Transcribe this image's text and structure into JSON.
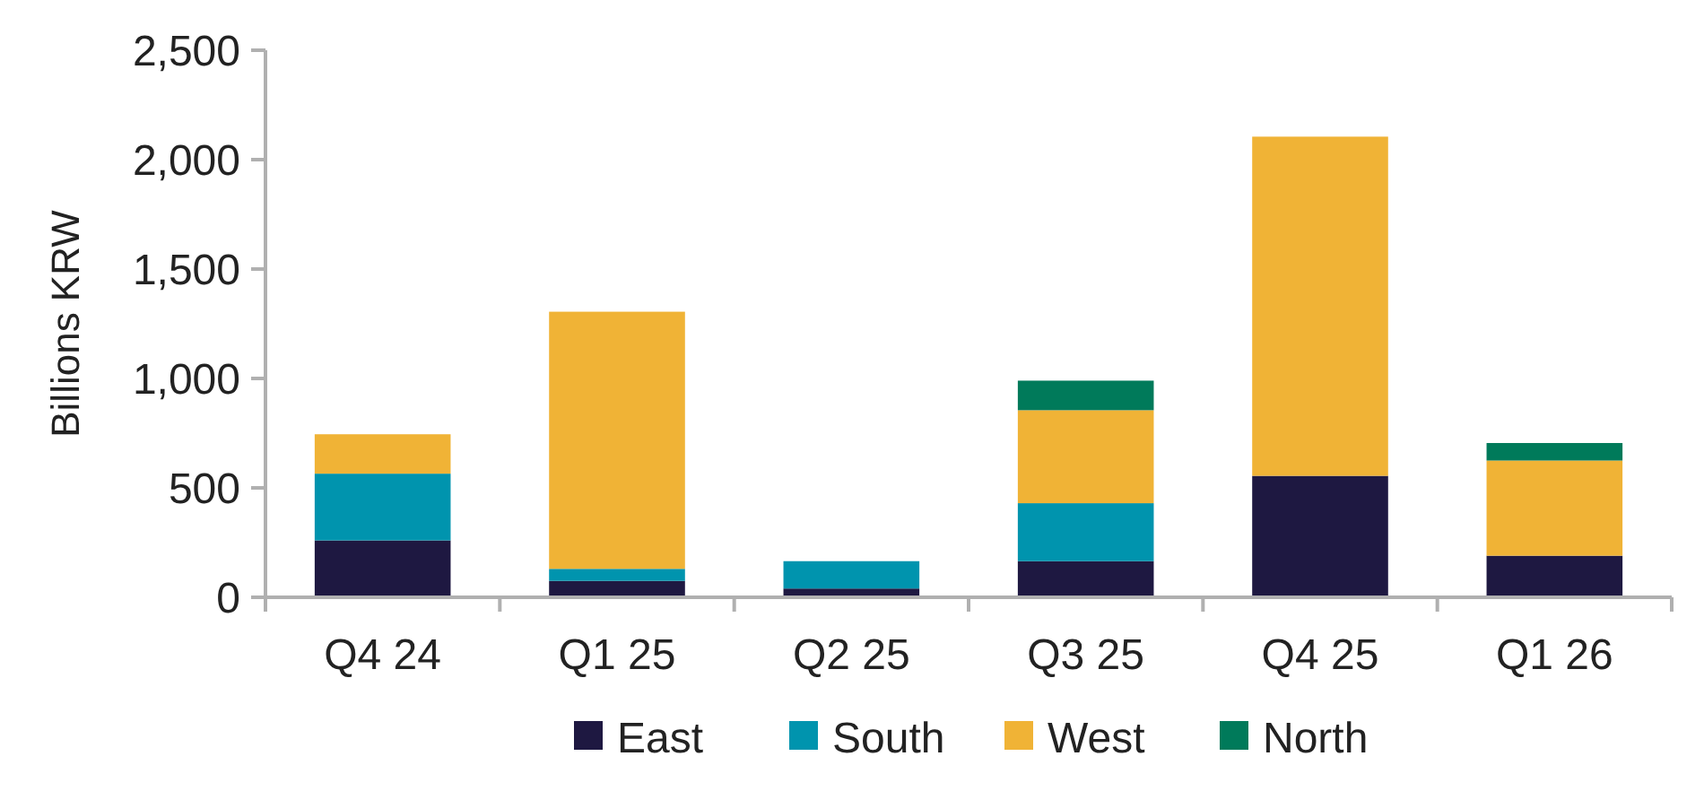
{
  "chart_data": {
    "type": "bar",
    "stacked": true,
    "ylabel": "Billions KRW",
    "categories": [
      "Q4 24",
      "Q1 25",
      "Q2 25",
      "Q3 25",
      "Q4 25",
      "Q1 26"
    ],
    "series": [
      {
        "name": "East",
        "color": "#1e1841",
        "values": [
          260,
          75,
          40,
          165,
          555,
          190
        ]
      },
      {
        "name": "South",
        "color": "#0094ae",
        "values": [
          305,
          55,
          125,
          265,
          0,
          0
        ]
      },
      {
        "name": "West",
        "color": "#f0b336",
        "values": [
          180,
          1175,
          0,
          425,
          1550,
          435
        ]
      },
      {
        "name": "North",
        "color": "#007a5a",
        "values": [
          0,
          0,
          0,
          135,
          0,
          80
        ]
      }
    ],
    "ylim": [
      0,
      2500
    ],
    "yticks": [
      {
        "value": 0,
        "label": "0"
      },
      {
        "value": 500,
        "label": "500"
      },
      {
        "value": 1000,
        "label": "1,000"
      },
      {
        "value": 1500,
        "label": "1,500"
      },
      {
        "value": 2000,
        "label": "2,000"
      },
      {
        "value": 2500,
        "label": "2,500"
      }
    ],
    "grid": false,
    "legend": "bottom"
  }
}
